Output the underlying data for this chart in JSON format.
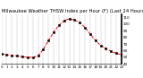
{
  "title": "Milwaukee Weather THSW Index per Hour (F) (Last 24 Hours)",
  "x_values": [
    0,
    1,
    2,
    3,
    4,
    5,
    6,
    7,
    8,
    9,
    10,
    11,
    12,
    13,
    14,
    15,
    16,
    17,
    18,
    19,
    20,
    21,
    22,
    23
  ],
  "y_values": [
    55,
    54,
    53,
    52,
    51,
    50,
    50,
    52,
    62,
    75,
    88,
    98,
    105,
    108,
    106,
    102,
    95,
    85,
    75,
    68,
    63,
    59,
    56,
    54
  ],
  "ylim": [
    40,
    115
  ],
  "xlim": [
    0,
    23
  ],
  "line_color": "#ff0000",
  "marker_color": "#000000",
  "bg_color": "#ffffff",
  "grid_color": "#888888",
  "ytick_labels": [
    "40",
    "50",
    "60",
    "70",
    "80",
    "90",
    "100",
    "110"
  ],
  "ytick_values": [
    40,
    50,
    60,
    70,
    80,
    90,
    100,
    110
  ],
  "xtick_values": [
    0,
    1,
    2,
    3,
    4,
    5,
    6,
    7,
    8,
    9,
    10,
    11,
    12,
    13,
    14,
    15,
    16,
    17,
    18,
    19,
    20,
    21,
    22,
    23
  ],
  "title_fontsize": 3.8,
  "tick_fontsize": 3.0,
  "line_width": 0.7,
  "marker_size": 1.5
}
